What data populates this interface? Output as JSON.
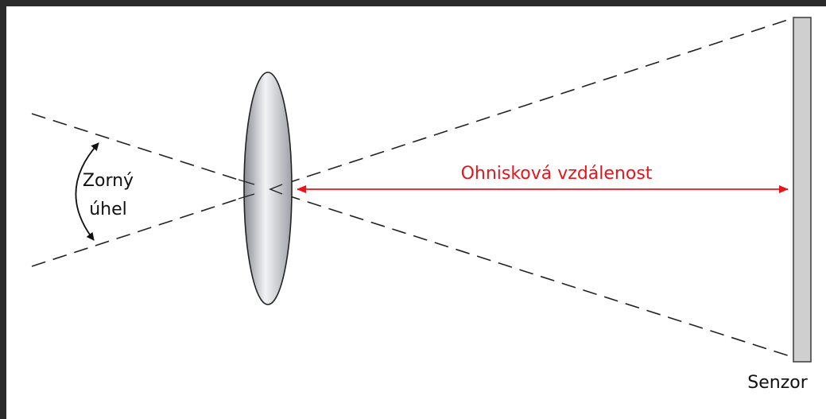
{
  "labels": {
    "angle": [
      "Zorný",
      "úhel"
    ],
    "focal_length": "Ohnisková vzdálenost",
    "sensor": "Senzor"
  }
}
